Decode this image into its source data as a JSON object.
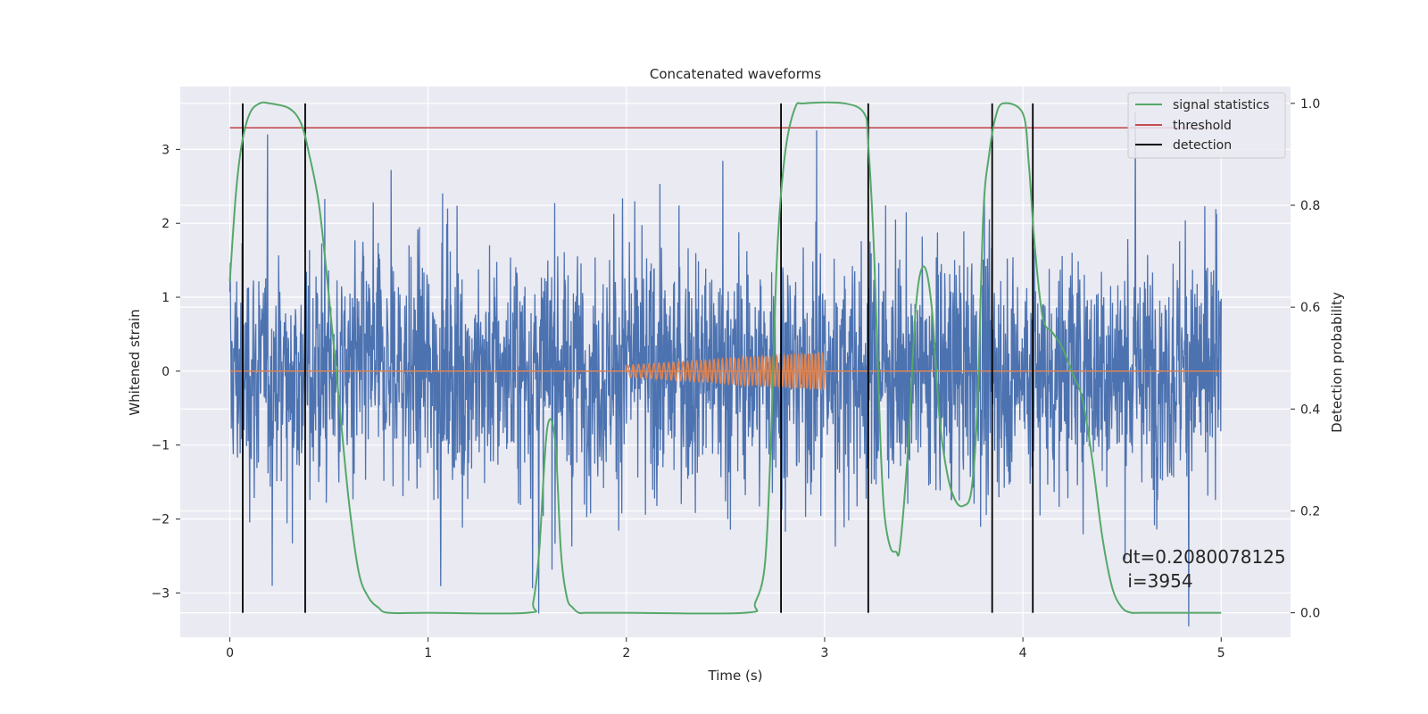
{
  "chart_data": {
    "type": "line",
    "title": "Concatenated waveforms",
    "xlabel": "Time (s)",
    "ylabel_left": "Whitened strain",
    "ylabel_right": "Detection probability",
    "xlim": [
      -0.25,
      5.35
    ],
    "ylim_left": [
      -3.6,
      3.85
    ],
    "ylim_right": [
      -0.048,
      1.033
    ],
    "x_ticks": [
      0,
      1,
      2,
      3,
      4,
      5
    ],
    "y_ticks_left": [
      -3,
      -2,
      -1,
      0,
      1,
      2,
      3
    ],
    "y_ticks_right": [
      0.0,
      0.2,
      0.4,
      0.6,
      0.8,
      1.0
    ],
    "grid": true,
    "legend_position": "top-right",
    "legend": [
      "signal statistics",
      "threshold",
      "detection"
    ],
    "annotation": {
      "line1": "dt=0.2080078125",
      "line2": " i=3954",
      "x": 4.52,
      "y": -2.55
    },
    "noise": {
      "x_range": [
        0,
        5
      ],
      "typical_abs_y": 1.3,
      "peak_abs_y": 3.5,
      "color": "#4c72b0"
    },
    "chirp": {
      "x_range": [
        2,
        3
      ],
      "amplitude_start": 0.08,
      "amplitude_end": 0.25,
      "cycles": 48,
      "color": "#dd8452"
    },
    "signal_statistics": {
      "color": "#55a868",
      "x": [
        0.0,
        0.03,
        0.06,
        0.1,
        0.15,
        0.2,
        0.3,
        0.36,
        0.4,
        0.45,
        0.5,
        0.55,
        0.6,
        0.65,
        0.7,
        0.75,
        0.8,
        1.0,
        1.5,
        1.53,
        1.56,
        1.6,
        1.64,
        1.67,
        1.7,
        1.73,
        1.76,
        1.8,
        2.0,
        2.6,
        2.65,
        2.7,
        2.73,
        2.76,
        2.8,
        2.85,
        2.9,
        3.1,
        3.2,
        3.22,
        3.25,
        3.28,
        3.3,
        3.33,
        3.36,
        3.38,
        3.42,
        3.46,
        3.5,
        3.54,
        3.58,
        3.62,
        3.66,
        3.7,
        3.74,
        3.77,
        3.8,
        3.83,
        3.86,
        3.9,
        4.0,
        4.03,
        4.06,
        4.1,
        4.15,
        4.2,
        4.25,
        4.3,
        4.35,
        4.4,
        4.45,
        4.5,
        4.55,
        4.6,
        5.0
      ],
      "y": [
        0.65,
        0.82,
        0.92,
        0.98,
        1.0,
        1.0,
        0.99,
        0.96,
        0.9,
        0.8,
        0.62,
        0.42,
        0.22,
        0.08,
        0.03,
        0.01,
        0.0,
        0.0,
        0.0,
        0.02,
        0.12,
        0.36,
        0.34,
        0.12,
        0.03,
        0.01,
        0.0,
        0.0,
        0.0,
        0.0,
        0.02,
        0.1,
        0.35,
        0.7,
        0.9,
        0.99,
        1.0,
        1.0,
        0.98,
        0.92,
        0.7,
        0.35,
        0.2,
        0.13,
        0.12,
        0.13,
        0.32,
        0.6,
        0.68,
        0.6,
        0.38,
        0.27,
        0.22,
        0.21,
        0.24,
        0.4,
        0.78,
        0.9,
        0.97,
        1.0,
        0.98,
        0.88,
        0.72,
        0.58,
        0.55,
        0.52,
        0.47,
        0.42,
        0.3,
        0.15,
        0.05,
        0.01,
        0.0,
        0.0,
        0.0
      ]
    },
    "threshold": {
      "color": "#c44e52",
      "value": 0.952,
      "x_range": [
        0,
        5
      ]
    },
    "detection": {
      "color": "#000000",
      "x": [
        0.065,
        0.38,
        2.78,
        3.22,
        3.845,
        4.05
      ]
    }
  }
}
